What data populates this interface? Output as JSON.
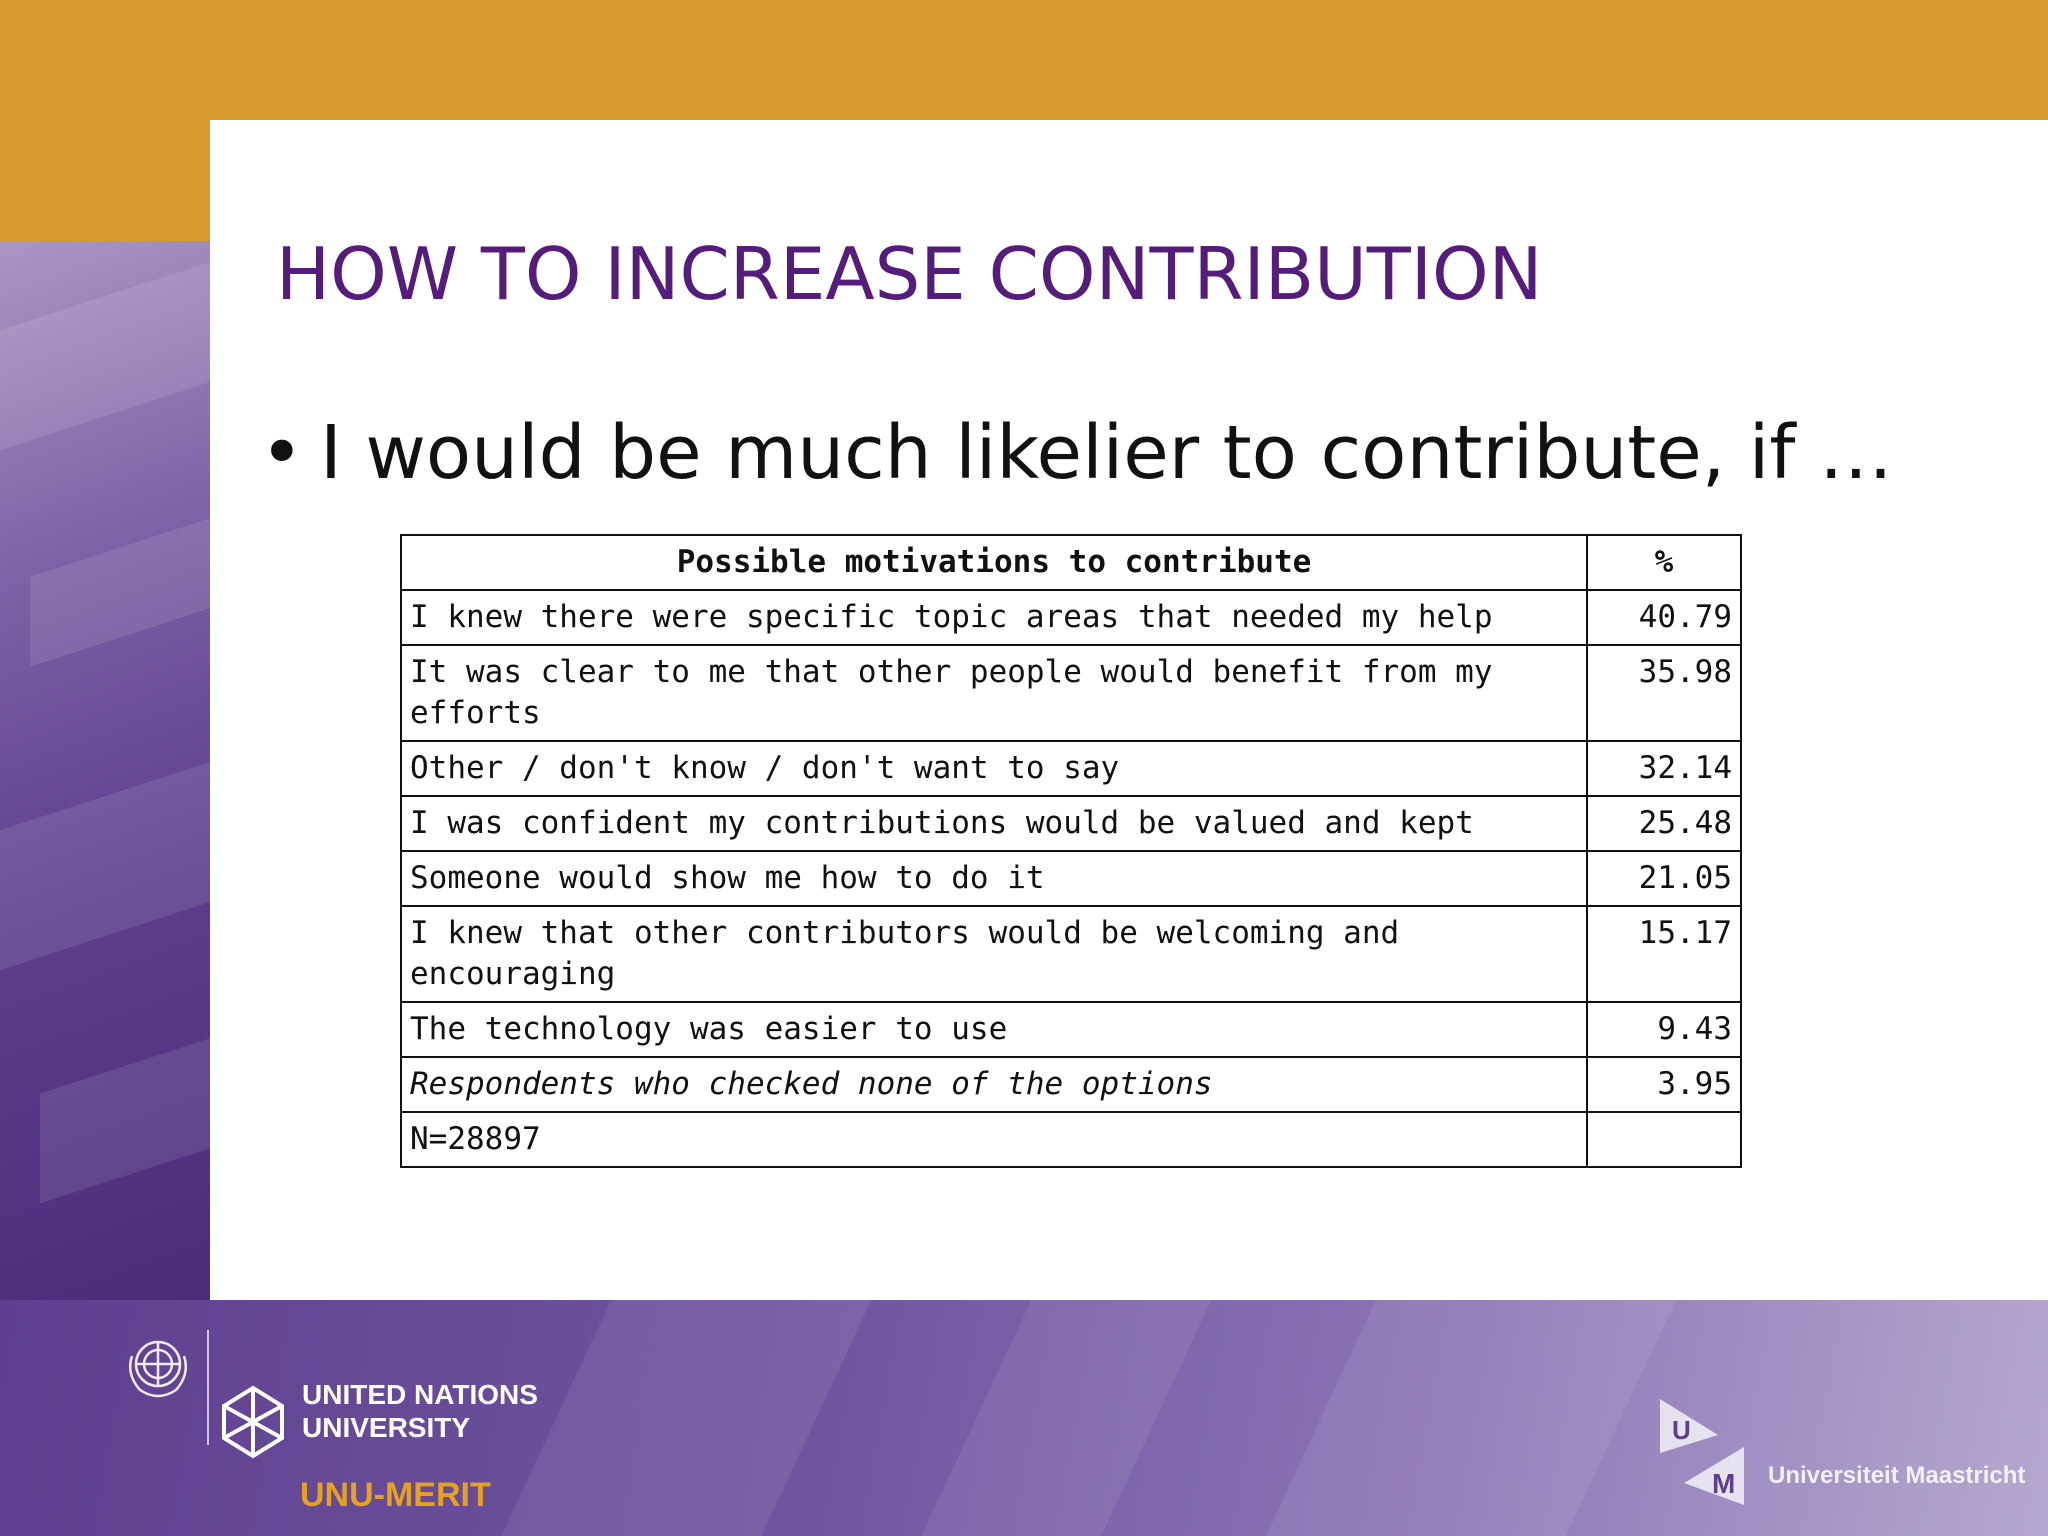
{
  "slide": {
    "title": "HOW TO INCREASE CONTRIBUTION",
    "bullet_symbol": "•",
    "bullet_text": "I would be much likelier to contribute, if …"
  },
  "table": {
    "headers": [
      "Possible motivations to contribute",
      "%"
    ],
    "rows": [
      {
        "label": "I knew there were specific topic areas that needed my help",
        "value": "40.79"
      },
      {
        "label": "It was clear to me that other people would benefit from my efforts",
        "value": "35.98"
      },
      {
        "label": "Other / don't know / don't want to say",
        "value": "32.14"
      },
      {
        "label": "I was confident my contributions would be valued and kept",
        "value": "25.48"
      },
      {
        "label": "Someone would show me how to do it",
        "value": "21.05"
      },
      {
        "label": "I knew that other contributors would be welcoming and encouraging",
        "value": "15.17"
      },
      {
        "label": "The technology was easier to use",
        "value": "9.43"
      },
      {
        "label": "Respondents who checked none of the options",
        "value": "3.95"
      },
      {
        "label": "N=28897",
        "value": ""
      }
    ]
  },
  "footer": {
    "unu_line1": "UNITED NATIONS",
    "unu_line2": "UNIVERSITY",
    "unu_merit": "UNU-MERIT",
    "um_letters": [
      "U",
      "M"
    ],
    "um_name": "Universiteit Maastricht",
    "icons": [
      "un-emblem-icon",
      "unu-logo-icon",
      "um-logo-icon"
    ]
  },
  "colors": {
    "top_band": "#d89a2e",
    "title": "#561c7c",
    "side_band": "#5d3f8e",
    "unu_merit": "#e6a21e"
  }
}
